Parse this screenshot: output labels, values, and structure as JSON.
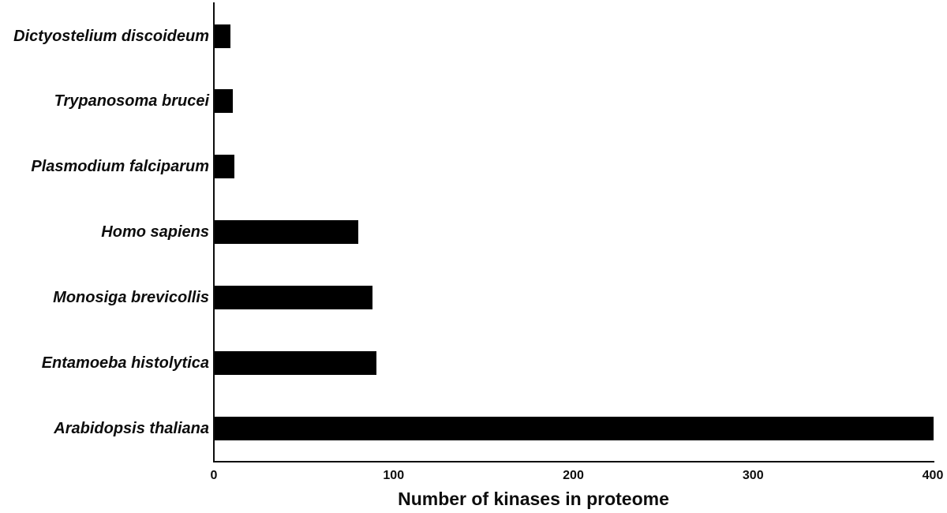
{
  "chart_data": {
    "type": "bar",
    "orientation": "horizontal",
    "title": "",
    "xlabel": "Number of kinases in proteome",
    "ylabel": "",
    "xlim": [
      0,
      400
    ],
    "x_ticks": [
      "0",
      "100",
      "200",
      "300",
      "400"
    ],
    "x_tick_values": [
      0,
      100,
      200,
      300,
      400
    ],
    "grid": false,
    "legend": "none",
    "bar_color": "#000000",
    "axis_color": "#0d0d0d",
    "background_color": "#ffffff",
    "categories": [
      "Dictyostelium discoideum",
      "Trypanosoma brucei",
      "Plasmodium falciparum",
      "Homo sapiens",
      "Monosiga brevicollis",
      "Entamoeba histolytica",
      "Arabidopsis thaliana"
    ],
    "values": [
      9,
      10,
      11,
      80,
      88,
      90,
      400
    ]
  }
}
